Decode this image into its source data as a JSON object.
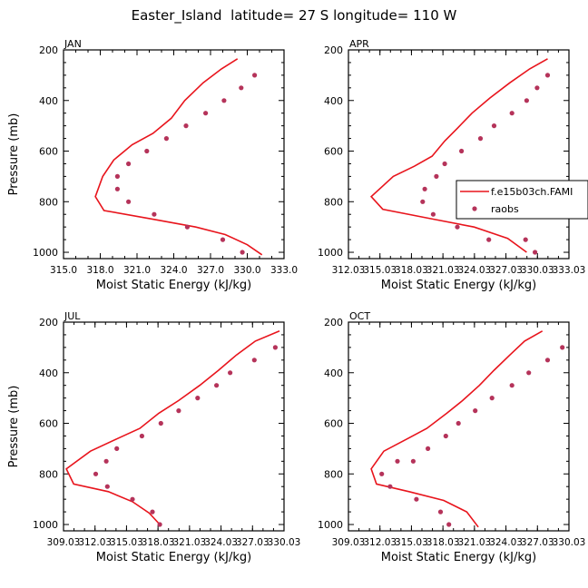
{
  "title": "Easter_Island  latitude= 27 S longitude= 110 W",
  "colors": {
    "model": "#e8141c",
    "obs": "#b5335a",
    "axis": "#000000"
  },
  "legend": {
    "model_label": "f.e15b03ch.FAMI",
    "obs_label": "raobs",
    "placement": "inside-right of APR panel"
  },
  "chart_data": [
    {
      "type": "line",
      "panel": "JAN",
      "xlabel": "Moist Static Energy (kJ/kg)",
      "ylabel": "Pressure (mb)",
      "xlim": [
        315.0,
        333.0
      ],
      "xticks": [
        "315.0",
        "318.0",
        "321.0",
        "324.0",
        "327.0",
        "330.0",
        "333.0"
      ],
      "xtick_values": [
        315.0,
        318.0,
        321.0,
        324.0,
        327.0,
        330.0,
        333.0
      ],
      "ylim": [
        1025,
        200
      ],
      "yticks": [
        200,
        400,
        600,
        800,
        1000
      ],
      "series": [
        {
          "name": "f.e15b03ch.FAMI",
          "kind": "line",
          "x": [
            329.2,
            327.9,
            326.4,
            324.9,
            323.8,
            322.3,
            320.6,
            319.1,
            318.2,
            317.6,
            318.3,
            322.4,
            325.8,
            328.2,
            330.0,
            331.2
          ],
          "y": [
            235,
            275,
            330,
            400,
            470,
            530,
            575,
            635,
            700,
            780,
            835,
            870,
            900,
            930,
            970,
            1010
          ]
        },
        {
          "name": "raobs",
          "kind": "scatter",
          "x": [
            330.6,
            329.5,
            328.1,
            326.6,
            325.0,
            323.4,
            321.8,
            320.3,
            319.4,
            319.4,
            320.3,
            322.4,
            325.1,
            328.0,
            329.6
          ],
          "y": [
            300,
            350,
            400,
            450,
            500,
            550,
            600,
            650,
            700,
            750,
            800,
            850,
            900,
            950,
            1000
          ]
        }
      ]
    },
    {
      "type": "line",
      "panel": "APR",
      "xlabel": "Moist Static Energy (kJ/kg)",
      "ylabel": "",
      "xlim": [
        312.03,
        333.03
      ],
      "xticks": [
        "312.03",
        "315.03",
        "318.03",
        "321.03",
        "324.03",
        "327.03",
        "330.03",
        "333.03"
      ],
      "xtick_values": [
        312.03,
        315.03,
        318.03,
        321.03,
        324.03,
        327.03,
        330.03,
        333.03
      ],
      "ylim": [
        1025,
        200
      ],
      "yticks": [
        200,
        400,
        600,
        800,
        1000
      ],
      "series": [
        {
          "name": "f.e15b03ch.FAMI",
          "kind": "line",
          "x": [
            331.0,
            329.3,
            327.4,
            325.5,
            323.8,
            322.4,
            321.2,
            320.0,
            318.3,
            316.3,
            314.2,
            315.3,
            319.6,
            324.0,
            327.2,
            329.0
          ],
          "y": [
            235,
            275,
            330,
            390,
            450,
            510,
            560,
            620,
            660,
            700,
            780,
            830,
            865,
            900,
            945,
            1000
          ]
        },
        {
          "name": "raobs",
          "kind": "scatter",
          "x": [
            331.0,
            330.0,
            329.0,
            327.6,
            325.9,
            324.6,
            322.8,
            321.2,
            320.4,
            319.3,
            319.1,
            320.1,
            322.4,
            325.4,
            328.9,
            329.8
          ],
          "y": [
            300,
            350,
            400,
            450,
            500,
            550,
            600,
            650,
            700,
            750,
            800,
            850,
            900,
            950,
            950,
            1000
          ]
        }
      ]
    },
    {
      "type": "line",
      "panel": "JUL",
      "xlabel": "Moist Static Energy (kJ/kg)",
      "ylabel": "Pressure (mb)",
      "xlim": [
        309.03,
        330.03
      ],
      "xticks": [
        "309.03",
        "312.03",
        "315.03",
        "318.03",
        "321.03",
        "324.03",
        "327.03",
        "330.03"
      ],
      "xtick_values": [
        309.03,
        312.03,
        315.03,
        318.03,
        321.03,
        324.03,
        327.03,
        330.03
      ],
      "ylim": [
        1025,
        200
      ],
      "yticks": [
        200,
        400,
        600,
        800,
        1000
      ],
      "series": [
        {
          "name": "f.e15b03ch.FAMI",
          "kind": "line",
          "x": [
            329.6,
            327.3,
            325.5,
            323.8,
            322.0,
            320.0,
            318.1,
            316.3,
            314.2,
            311.6,
            309.3,
            310.0,
            313.3,
            315.6,
            317.2,
            318.2
          ],
          "y": [
            235,
            275,
            330,
            390,
            450,
            510,
            560,
            620,
            660,
            710,
            780,
            840,
            870,
            910,
            955,
            1000
          ]
        },
        {
          "name": "raobs",
          "kind": "scatter",
          "x": [
            329.2,
            327.2,
            324.9,
            323.6,
            321.8,
            320.0,
            318.3,
            316.5,
            314.1,
            313.1,
            312.1,
            313.2,
            315.6,
            317.5,
            318.2
          ],
          "y": [
            300,
            350,
            400,
            450,
            500,
            550,
            600,
            650,
            700,
            750,
            800,
            850,
            900,
            950,
            1000
          ]
        }
      ]
    },
    {
      "type": "line",
      "panel": "OCT",
      "xlabel": "Moist Static Energy (kJ/kg)",
      "ylabel": "",
      "xlim": [
        309.03,
        330.03
      ],
      "xticks": [
        "309.03",
        "312.03",
        "315.03",
        "318.03",
        "321.03",
        "324.03",
        "327.03",
        "330.03"
      ],
      "xtick_values": [
        309.03,
        312.03,
        315.03,
        318.03,
        321.03,
        324.03,
        327.03,
        330.03
      ],
      "ylim": [
        1025,
        200
      ],
      "yticks": [
        200,
        400,
        600,
        800,
        1000
      ],
      "series": [
        {
          "name": "f.e15b03ch.FAMI",
          "kind": "line",
          "x": [
            327.5,
            325.8,
            324.4,
            322.9,
            321.5,
            319.9,
            318.4,
            316.5,
            314.7,
            312.4,
            311.2,
            311.7,
            314.8,
            318.1,
            320.3,
            321.4
          ],
          "y": [
            235,
            275,
            330,
            390,
            450,
            510,
            560,
            620,
            660,
            710,
            780,
            840,
            870,
            905,
            950,
            1010
          ]
        },
        {
          "name": "raobs",
          "kind": "scatter",
          "x": [
            329.4,
            328.0,
            326.2,
            324.6,
            322.7,
            321.1,
            319.5,
            318.3,
            316.6,
            315.2,
            313.7,
            312.2,
            313.0,
            315.5,
            317.8,
            318.6
          ],
          "y": [
            300,
            350,
            400,
            450,
            500,
            550,
            600,
            650,
            700,
            750,
            750,
            800,
            850,
            900,
            950,
            1000
          ]
        }
      ]
    }
  ]
}
